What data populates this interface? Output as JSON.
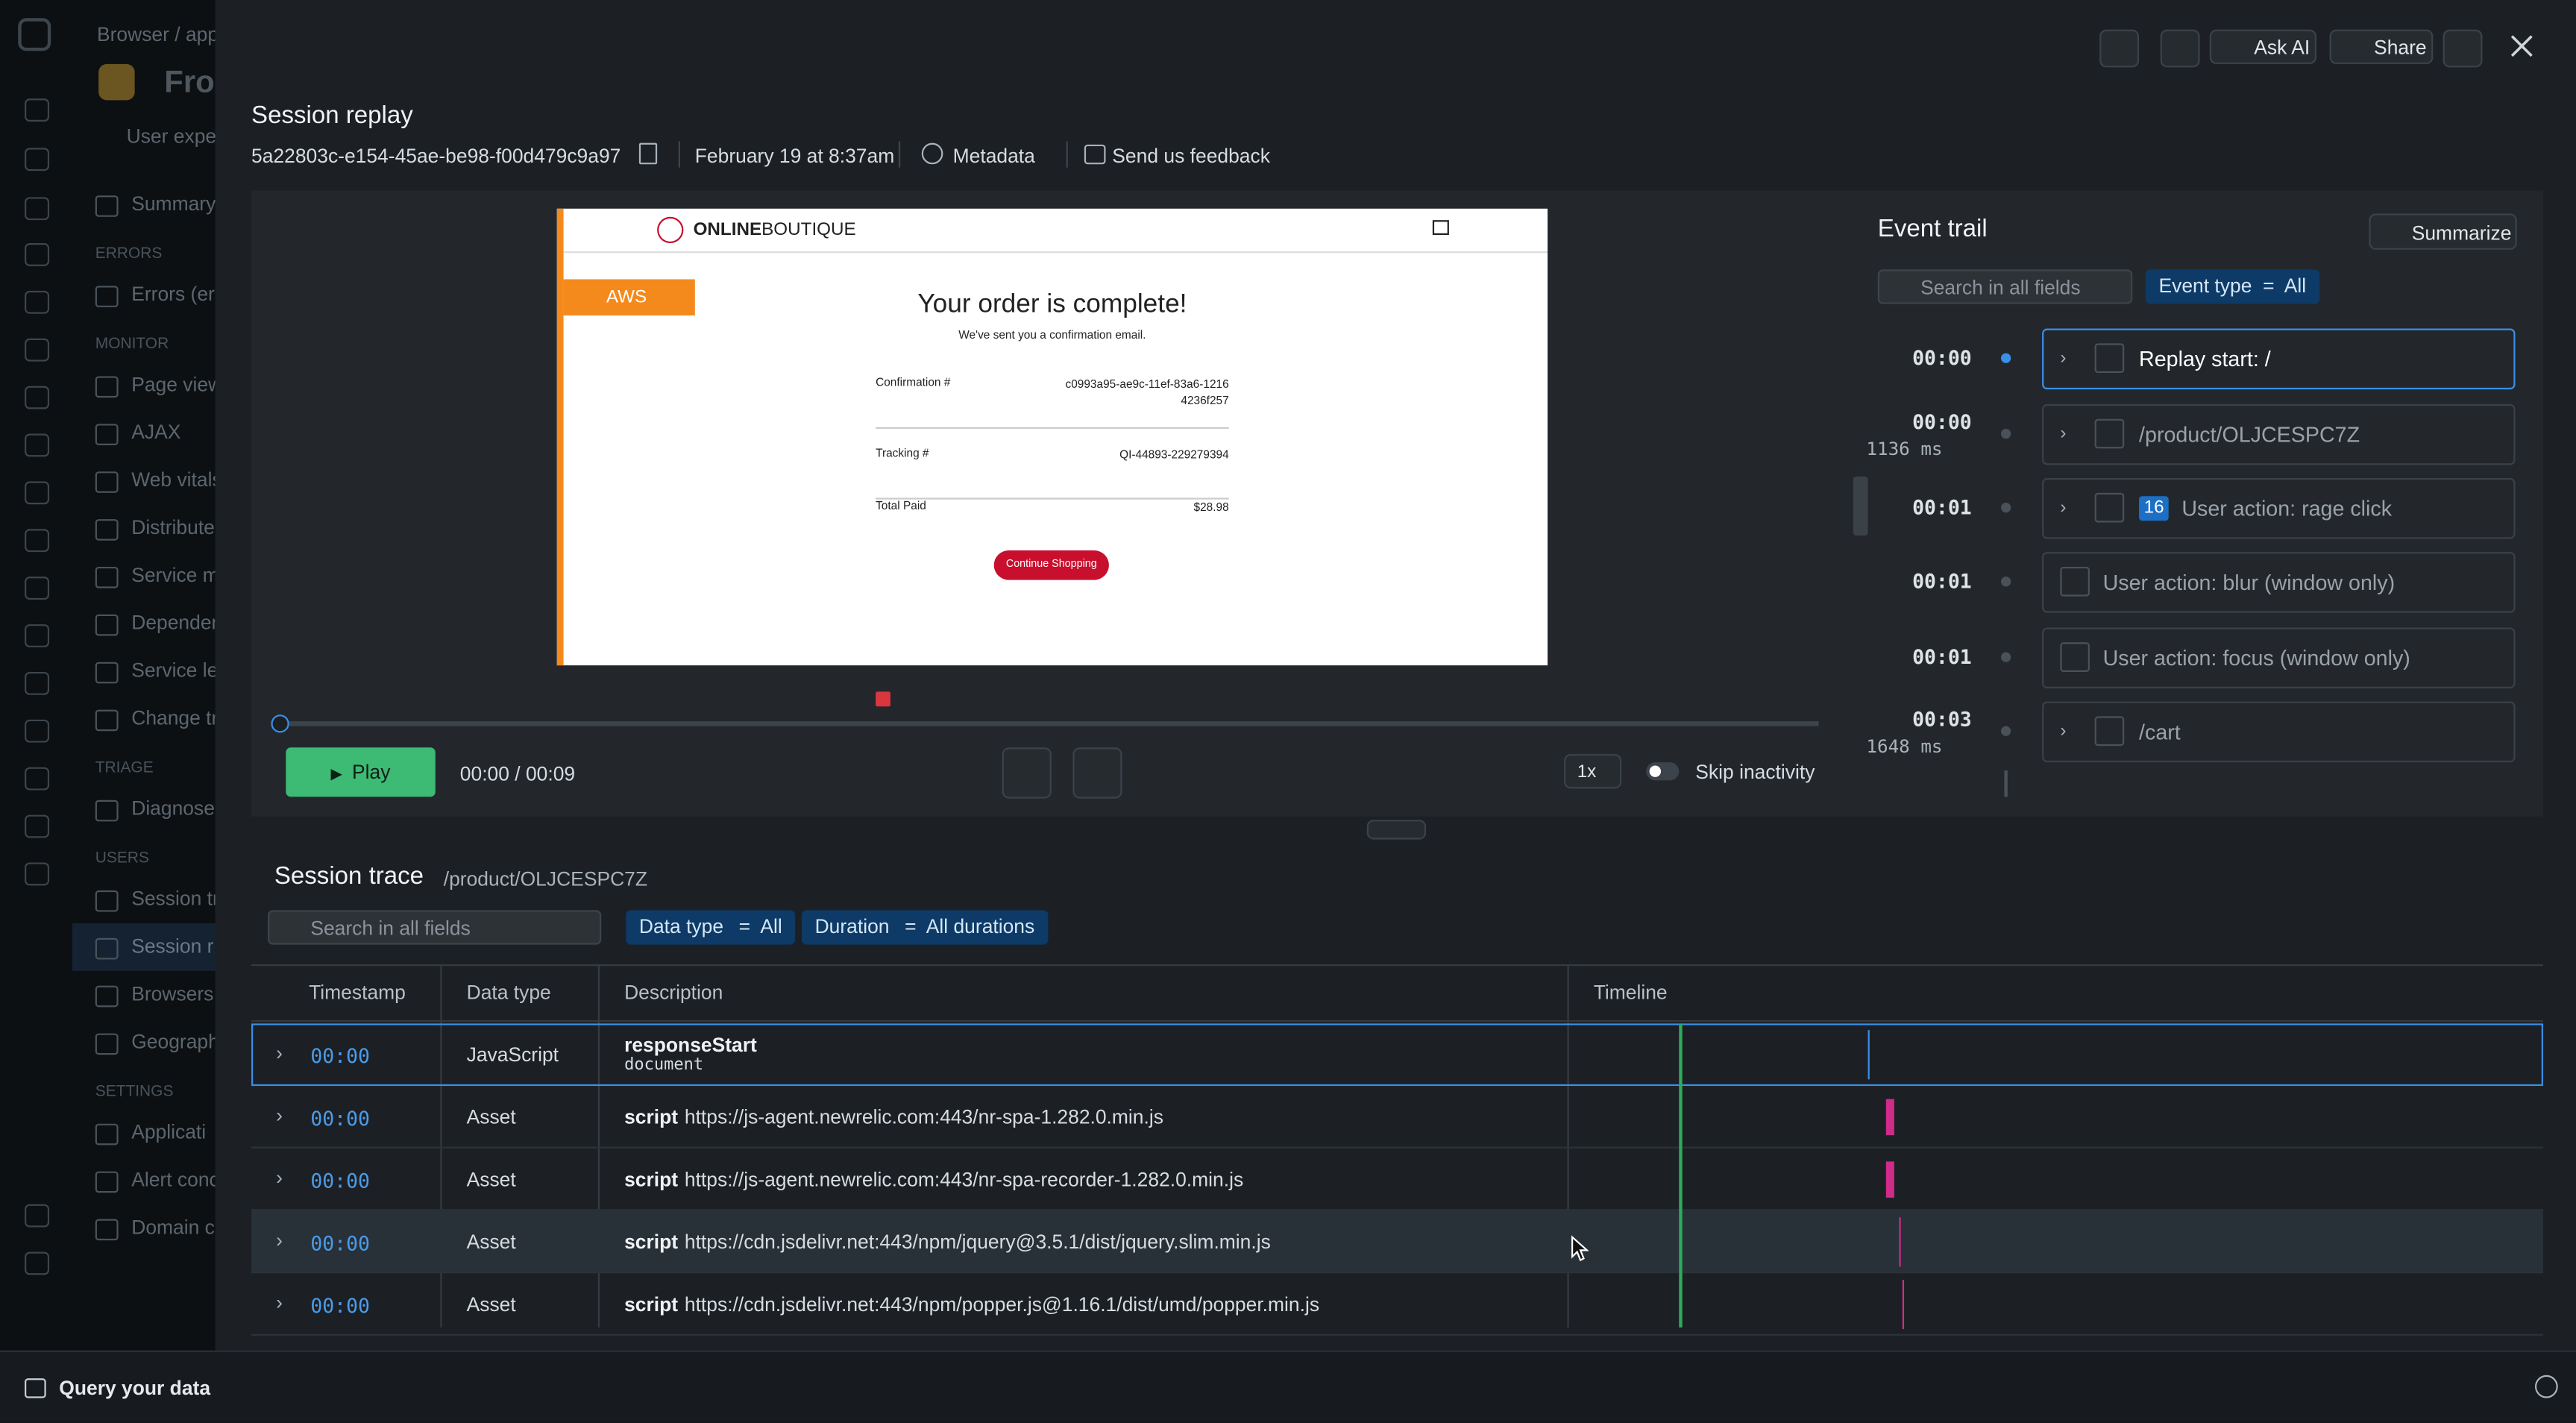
{
  "sidebar": {
    "breadcrumb": "Browser / app",
    "app_name": "Fro",
    "subtitle": "User expe",
    "top_item": "Summary",
    "sections": [
      {
        "heading": "ERRORS",
        "items": [
          "Errors (er"
        ]
      },
      {
        "heading": "MONITOR",
        "items": [
          "Page view",
          "AJAX",
          "Web vitals",
          "Distribute",
          "Service m",
          "Dependen",
          "Service le",
          "Change tr"
        ]
      },
      {
        "heading": "TRIAGE",
        "items": [
          "Diagnose"
        ]
      },
      {
        "heading": "USERS",
        "items": [
          "Session tr",
          "Session r",
          "Browsers",
          "Geograph"
        ]
      },
      {
        "heading": "SETTINGS",
        "items": [
          "Applicati",
          "Alert conc",
          "Domain co"
        ]
      }
    ]
  },
  "toolbar": {
    "ask_ai": "Ask AI",
    "share": "Share"
  },
  "header": {
    "title": "Session replay",
    "session_id": "5a22803c-e154-45ae-be98-f00d479c9a97",
    "date": "February 19 at 8:37am",
    "metadata": "Metadata",
    "feedback": "Send us feedback"
  },
  "replay": {
    "brand_bold": "ONLINE",
    "brand_light": "BOUTIQUE",
    "badge": "AWS",
    "heading": "Your order is complete!",
    "subheading": "We've sent you a confirmation email.",
    "fields": [
      {
        "label": "Confirmation #",
        "value": "c0993a95-ae9c-11ef-83a6-12164236f257"
      },
      {
        "label": "Tracking #",
        "value": "QI-44893-229279394"
      },
      {
        "label": "Total Paid",
        "value": "$28.98"
      }
    ],
    "button": "Continue Shopping"
  },
  "controls": {
    "play": "Play",
    "time": "00:00 / 00:09",
    "speed": "1x",
    "skip": "Skip inactivity"
  },
  "event_trail": {
    "title": "Event trail",
    "summarize": "Summarize",
    "search": "Search in all fields",
    "filter_key": "Event type",
    "filter_op": "=",
    "filter_value": "All",
    "events": [
      {
        "time": "00:00",
        "label": "Replay start: /"
      },
      {
        "time": "00:00",
        "duration": "1136 ms",
        "label": "/product/OLJCESPC7Z"
      },
      {
        "time": "00:01",
        "count": "16",
        "label": "User action: rage click"
      },
      {
        "time": "00:01",
        "label": "User action: blur (window only)"
      },
      {
        "time": "00:01",
        "label": "User action: focus (window only)"
      },
      {
        "time": "00:03",
        "duration": "1648 ms",
        "label": "/cart"
      }
    ]
  },
  "session_trace": {
    "title": "Session trace",
    "path": "/product/OLJCESPC7Z",
    "search": "Search in all fields",
    "filters": [
      {
        "key": "Data type",
        "op": "=",
        "value": "All"
      },
      {
        "key": "Duration",
        "op": "=",
        "value": "All durations"
      }
    ],
    "columns": [
      "Timestamp",
      "Data type",
      "Description",
      "Timeline"
    ],
    "rows": [
      {
        "timestamp": "00:00",
        "data_type": "JavaScript",
        "name": "responseStart",
        "detail": "document"
      },
      {
        "timestamp": "00:00",
        "data_type": "Asset",
        "name": "script",
        "detail": "https://js-agent.newrelic.com:443/nr-spa-1.282.0.min.js"
      },
      {
        "timestamp": "00:00",
        "data_type": "Asset",
        "name": "script",
        "detail": "https://js-agent.newrelic.com:443/nr-spa-recorder-1.282.0.min.js"
      },
      {
        "timestamp": "00:00",
        "data_type": "Asset",
        "name": "script",
        "detail": "https://cdn.jsdelivr.net:443/npm/jquery@3.5.1/dist/jquery.slim.min.js"
      },
      {
        "timestamp": "00:00",
        "data_type": "Asset",
        "name": "script",
        "detail": "https://cdn.jsdelivr.net:443/npm/popper.js@1.16.1/dist/umd/popper.min.js"
      }
    ]
  },
  "footer": {
    "query": "Query your data"
  }
}
